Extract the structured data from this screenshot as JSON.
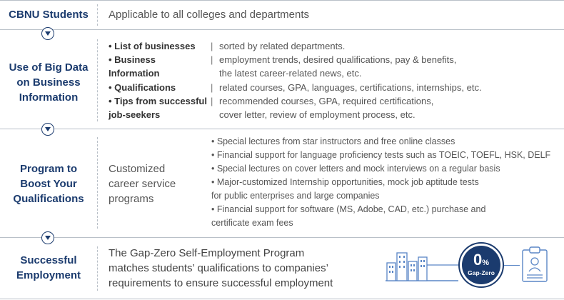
{
  "rows": [
    {
      "label": "CBNU Students",
      "text": "Applicable to all colleges and departments"
    },
    {
      "label": "Use of Big Data\non Business\nInformation"
    },
    {
      "label": "Program to\nBoost Your\nQualifications",
      "text": "Customized\ncareer service\nprograms"
    },
    {
      "label": "Successful\nEmployment",
      "text": "The Gap-Zero Self-Employment Program\nmatches students’ qualifications to companies’\nrequirements to ensure successful employment"
    }
  ],
  "bigdata": [
    {
      "key": "• List of businesses",
      "sep": "|",
      "val": "sorted by related departments."
    },
    {
      "key": "• Business\n   Information",
      "sep": "|",
      "val": "employment trends, desired qualifications, pay & benefits,\nthe latest career-related news, etc."
    },
    {
      "key": "• Qualifications",
      "sep": "|",
      "val": "related courses, GPA, languages, certifications, internships, etc."
    },
    {
      "key": "• Tips from successful\n   job-seekers",
      "sep": "|",
      "val": "recommended courses, GPA, required certifications,\ncover letter, review of employment process, etc."
    }
  ],
  "programs": [
    "• Special lectures from star instructors and free online classes",
    "• Financial support for language proficiency tests such as TOEIC, TOEFL, HSK, DELF",
    "• Special lectures on cover letters and mock interviews on a regular basis",
    "• Major-customized Internship opportunities, mock job aptitude tests\n   for public enterprises and large companies",
    "• Financial support for software (MS, Adobe, CAD, etc.) purchase and\n   certificate exam fees"
  ],
  "badge": {
    "big": "0",
    "pct": "%",
    "sub": "Gap-Zero"
  },
  "colors": {
    "navy": "#1b3b6e",
    "border": "#b9c0c8",
    "icon_blue": "#5a86c6"
  }
}
